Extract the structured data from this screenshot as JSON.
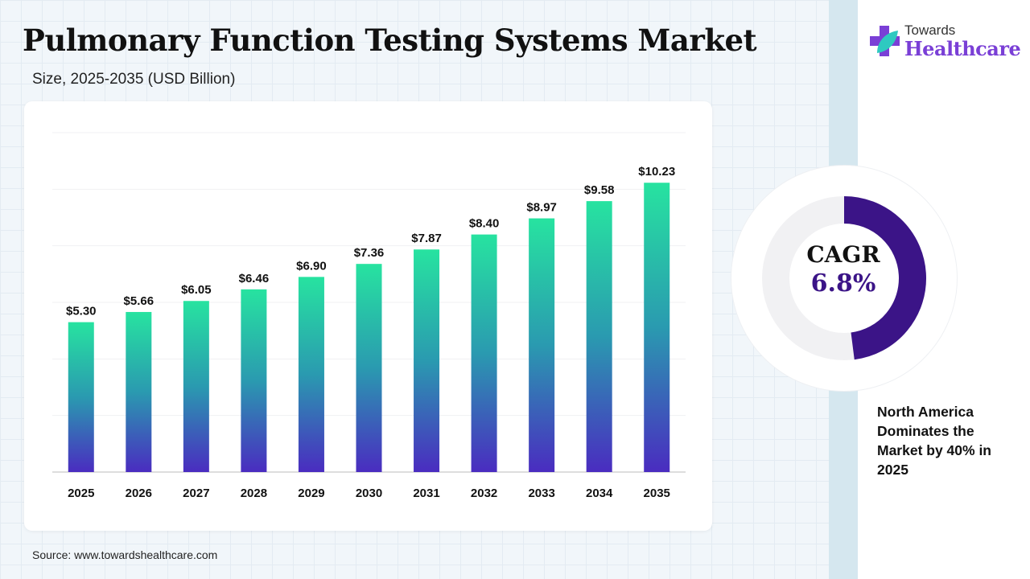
{
  "header": {
    "title": "Pulmonary Function Testing Systems Market",
    "subtitle": "Size, 2025-2035 (USD Billion)"
  },
  "logo": {
    "line1": "Towards",
    "line2": "Healthcare"
  },
  "source": "Source: www.towardshealthcare.com",
  "cagr": {
    "label": "CAGR",
    "value": "6.8%",
    "arc_fraction": 0.48,
    "color": "#3b1487"
  },
  "note": "North America Dominates the Market by 40% in 2025",
  "colors": {
    "bar_top": "#27e3a0",
    "bar_bottom": "#4a2cc0"
  },
  "chart_data": {
    "type": "bar",
    "title": "Pulmonary Function Testing Systems Market",
    "xlabel": "",
    "ylabel": "USD Billion",
    "ylim": [
      0,
      12
    ],
    "grid": true,
    "categories": [
      "2025",
      "2026",
      "2027",
      "2028",
      "2029",
      "2030",
      "2031",
      "2032",
      "2033",
      "2034",
      "2035"
    ],
    "values": [
      5.3,
      5.66,
      6.05,
      6.46,
      6.9,
      7.36,
      7.87,
      8.4,
      8.97,
      9.58,
      10.23
    ],
    "labels": [
      "$5.30",
      "$5.66",
      "$6.05",
      "$6.46",
      "$6.90",
      "$7.36",
      "$7.87",
      "$8.40",
      "$8.97",
      "$9.58",
      "$10.23"
    ]
  }
}
